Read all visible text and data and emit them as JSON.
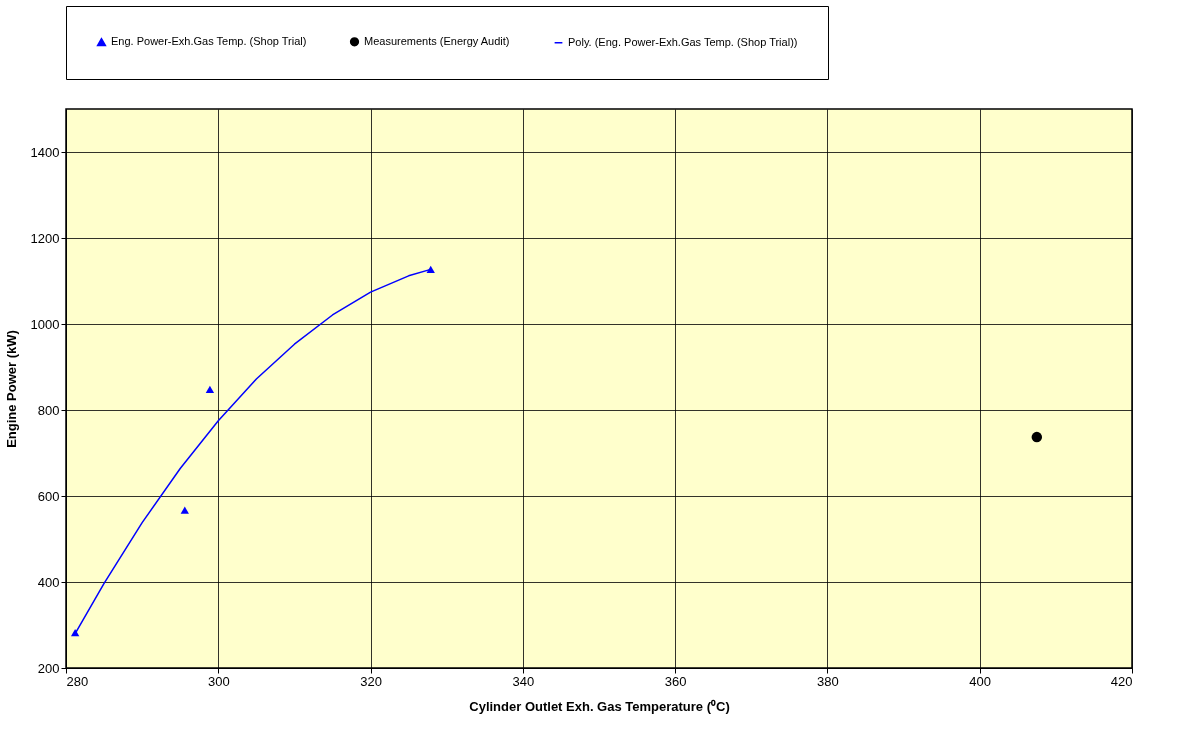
{
  "chart_data": {
    "type": "scatter",
    "xlabel": "Cylinder Outlet  Exh. Gas Temperature (⁰C)",
    "ylabel": "Engine Power (kW)",
    "xlim": [
      280,
      420
    ],
    "xticks": [
      280,
      300,
      320,
      340,
      360,
      380,
      400,
      420
    ],
    "ylim": [
      200,
      1500
    ],
    "yticks": [
      200,
      400,
      600,
      800,
      1000,
      1200,
      1400
    ],
    "grid": true,
    "legend": "top",
    "series": [
      {
        "name": "Eng. Power-Exh.Gas Temp. (Shop Trial)",
        "marker": "triangle",
        "color": "#0000ff",
        "x": [
          281.2,
          295.6,
          298.9,
          327.9
        ],
        "values": [
          282,
          567,
          848,
          1127
        ]
      },
      {
        "name": "Measurements (Energy Audit)",
        "marker": "circle",
        "color": "#000000",
        "x": [
          407.5
        ],
        "values": [
          737
        ]
      },
      {
        "name": "Poly. (Eng. Power-Exh.Gas Temp. (Shop Trial))",
        "type": "line",
        "line_style": "solid",
        "color": "#0000ff",
        "x": [
          281.2,
          285,
          290,
          295,
          300,
          305,
          310,
          315,
          320,
          325,
          327.9
        ],
        "values": [
          280,
          397,
          538,
          664,
          775,
          872,
          953,
          1021,
          1074,
          1112,
          1127
        ]
      }
    ]
  }
}
